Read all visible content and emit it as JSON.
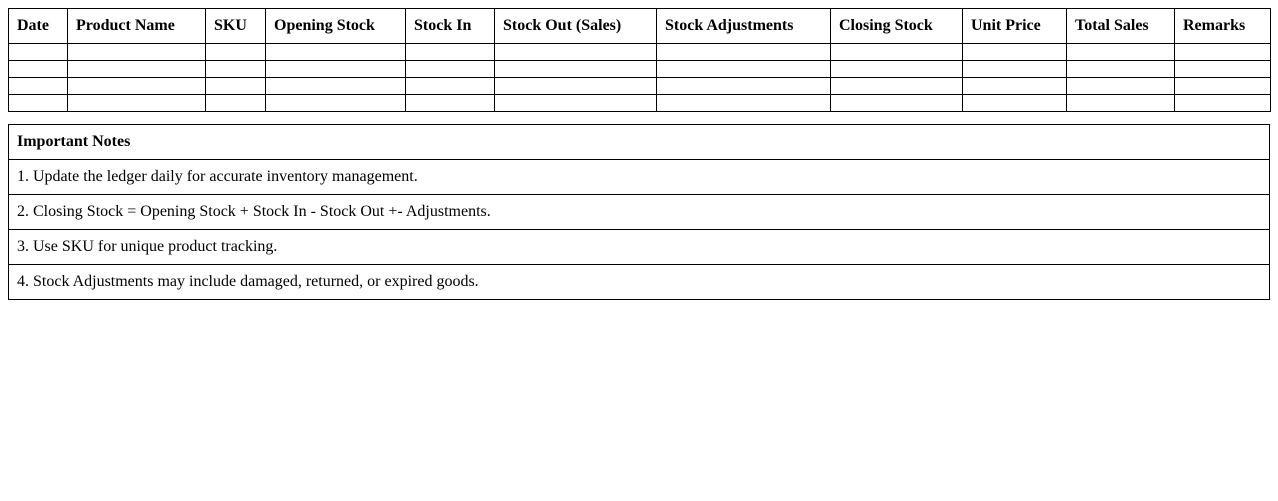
{
  "ledger": {
    "columns": [
      "Date",
      "Product Name",
      "SKU",
      "Opening Stock",
      "Stock In",
      "Stock Out (Sales)",
      "Stock Adjustments",
      "Closing Stock",
      "Unit Price",
      "Total Sales",
      "Remarks"
    ],
    "rows": [
      [
        "",
        "",
        "",
        "",
        "",
        "",
        "",
        "",
        "",
        "",
        ""
      ],
      [
        "",
        "",
        "",
        "",
        "",
        "",
        "",
        "",
        "",
        "",
        ""
      ],
      [
        "",
        "",
        "",
        "",
        "",
        "",
        "",
        "",
        "",
        "",
        ""
      ],
      [
        "",
        "",
        "",
        "",
        "",
        "",
        "",
        "",
        "",
        "",
        ""
      ]
    ]
  },
  "notes": {
    "title": "Important Notes",
    "items": [
      "1. Update the ledger daily for accurate inventory management.",
      "2. Closing Stock = Opening Stock + Stock In - Stock Out +- Adjustments.",
      "3. Use SKU for unique product tracking.",
      "4. Stock Adjustments may include damaged, returned, or expired goods."
    ]
  }
}
